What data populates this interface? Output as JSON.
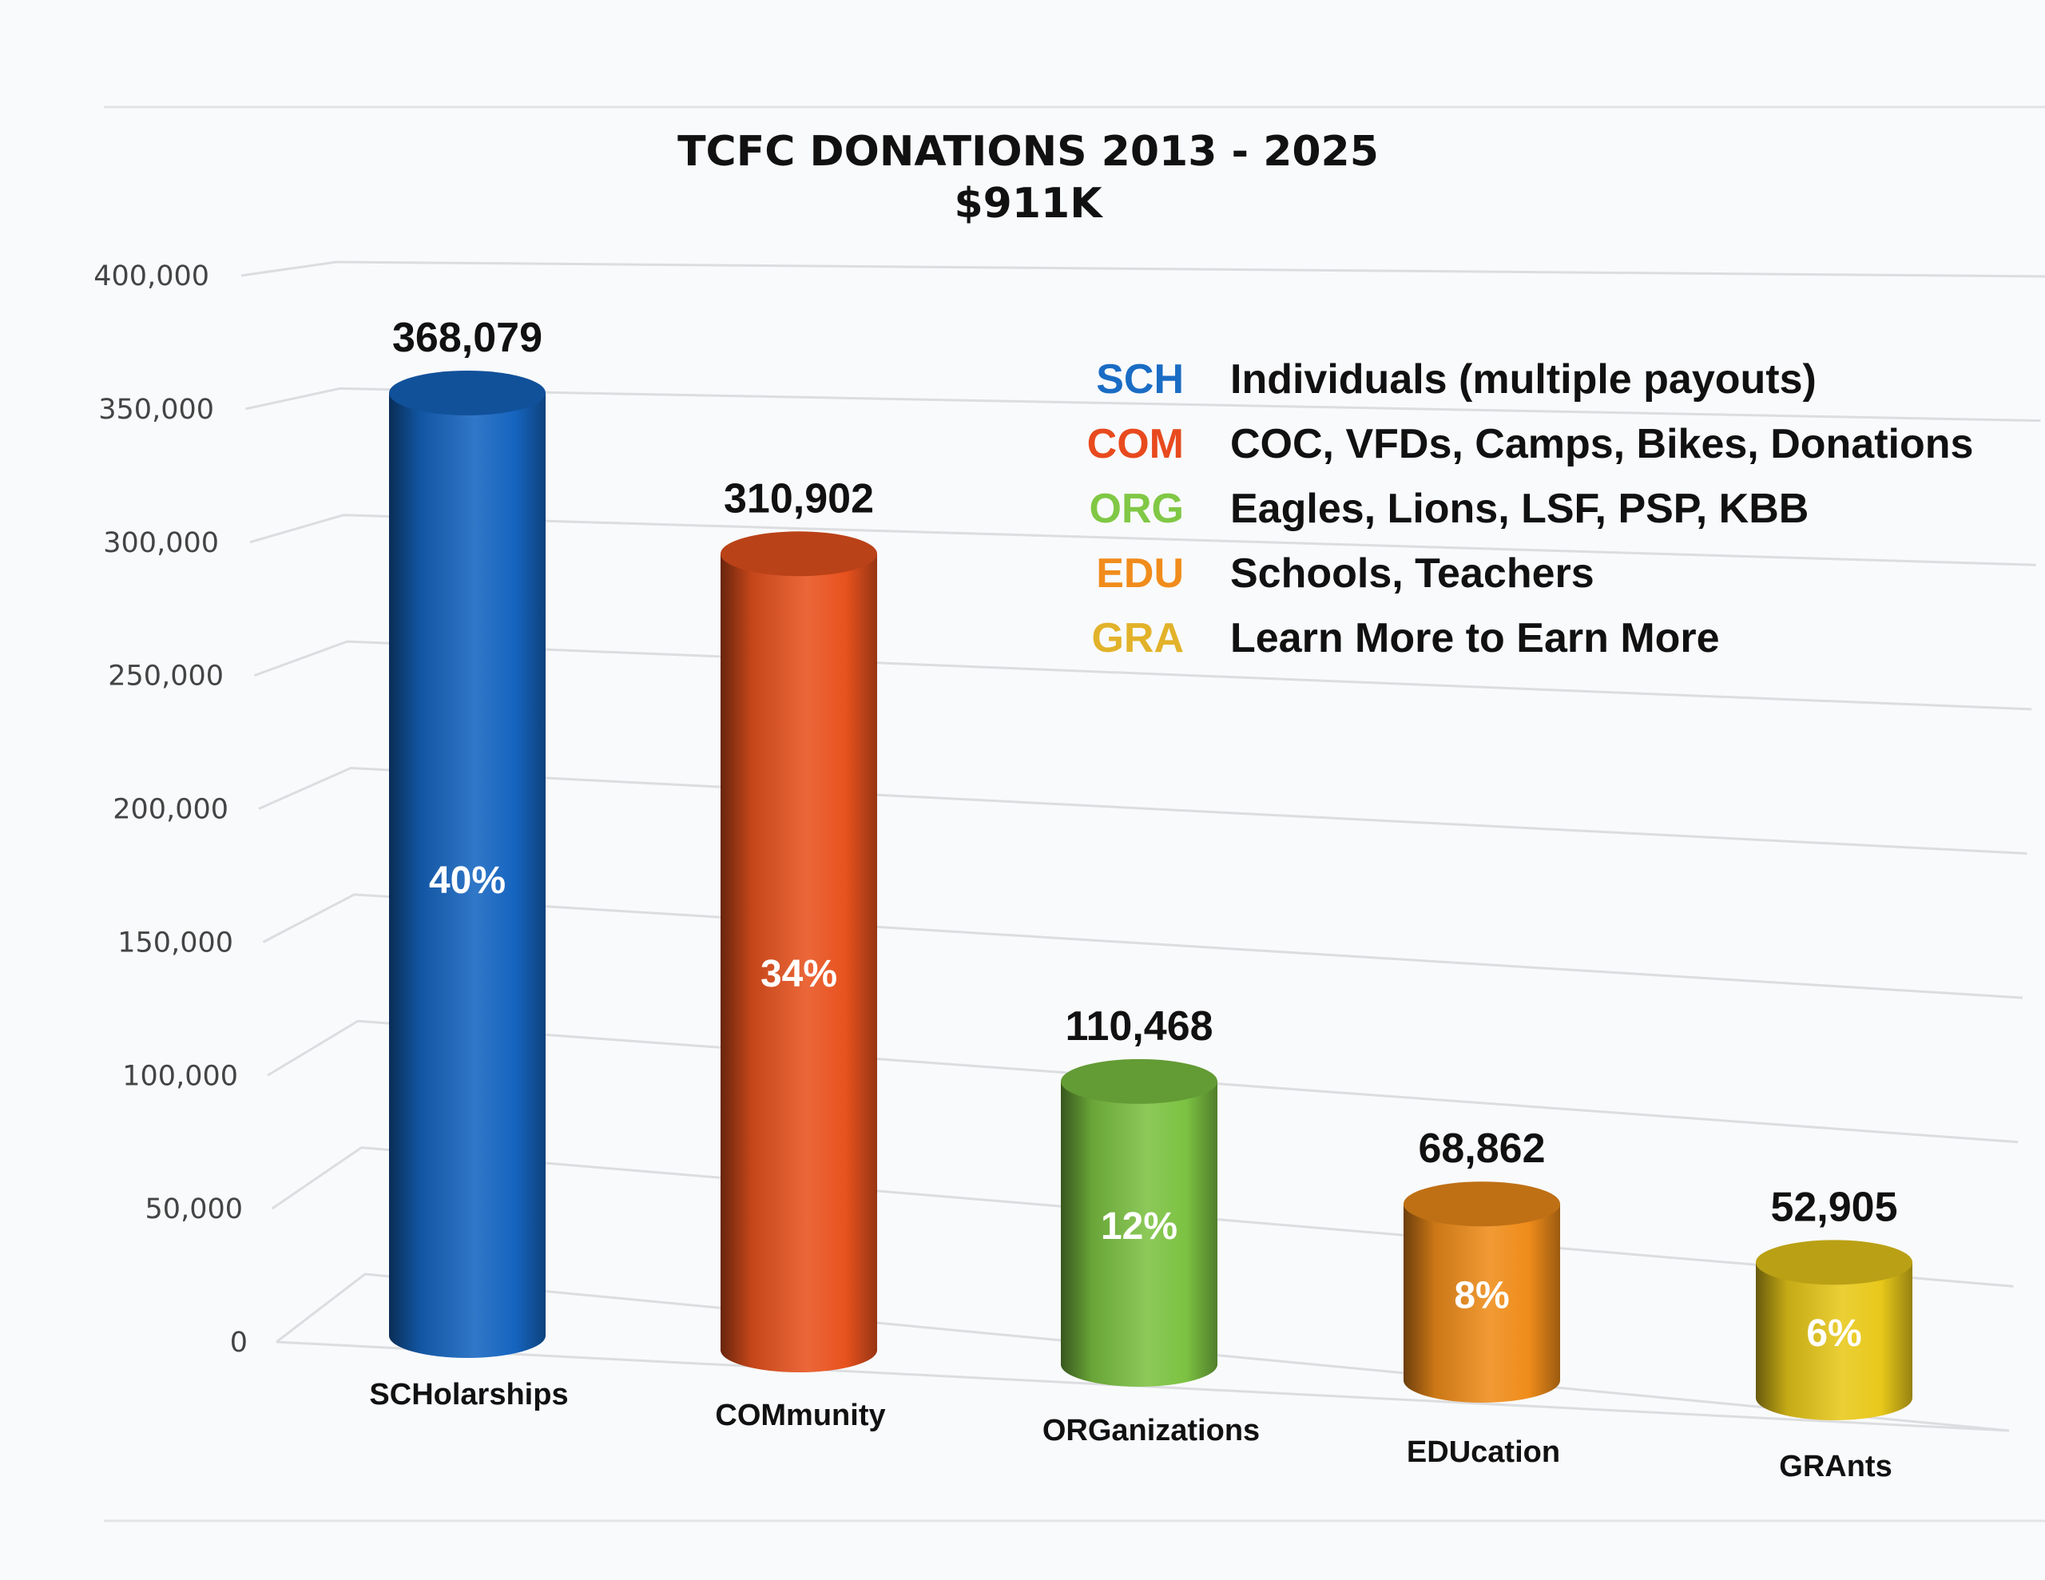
{
  "chart_data": {
    "type": "bar",
    "title": "TCFC DONATIONS 2013 - 2025",
    "subtitle": "$911K",
    "xlabel": "",
    "ylabel": "",
    "ylim": [
      0,
      400000
    ],
    "y_ticks": [
      "0",
      "50,000",
      "100,000",
      "150,000",
      "200,000",
      "250,000",
      "300,000",
      "350,000",
      "400,000"
    ],
    "y_tick_values": [
      0,
      50000,
      100000,
      150000,
      200000,
      250000,
      300000,
      350000,
      400000
    ],
    "grid": true,
    "categories": [
      "SCHolarships",
      "COMmunity",
      "ORGanizations",
      "EDUcation",
      "GRAnts"
    ],
    "values": [
      368079,
      310902,
      110468,
      68862,
      52905
    ],
    "value_labels": [
      "368,079",
      "310,902",
      "110,468",
      "68,862",
      "52,905"
    ],
    "percent_labels": [
      "40%",
      "34%",
      "12%",
      "8%",
      "6%"
    ],
    "colors": [
      "#1565c0",
      "#e8521e",
      "#7cc242",
      "#ef8c1a",
      "#e8c81a"
    ],
    "legend_placement": "top-right",
    "legend": [
      {
        "code": "SCH",
        "description": "Individuals (multiple payouts)",
        "color": "#1a6cc4"
      },
      {
        "code": "COM",
        "description": "COC, VFDs, Camps, Bikes, Donations",
        "color": "#e84a1e"
      },
      {
        "code": "ORG",
        "description": "Eagles, Lions, LSF, PSP, KBB",
        "color": "#80c845"
      },
      {
        "code": "EDU",
        "description": "Schools, Teachers",
        "color": "#f08c1c"
      },
      {
        "code": "GRA",
        "description": "Learn More to Earn More",
        "color": "#e2b22a"
      }
    ]
  }
}
